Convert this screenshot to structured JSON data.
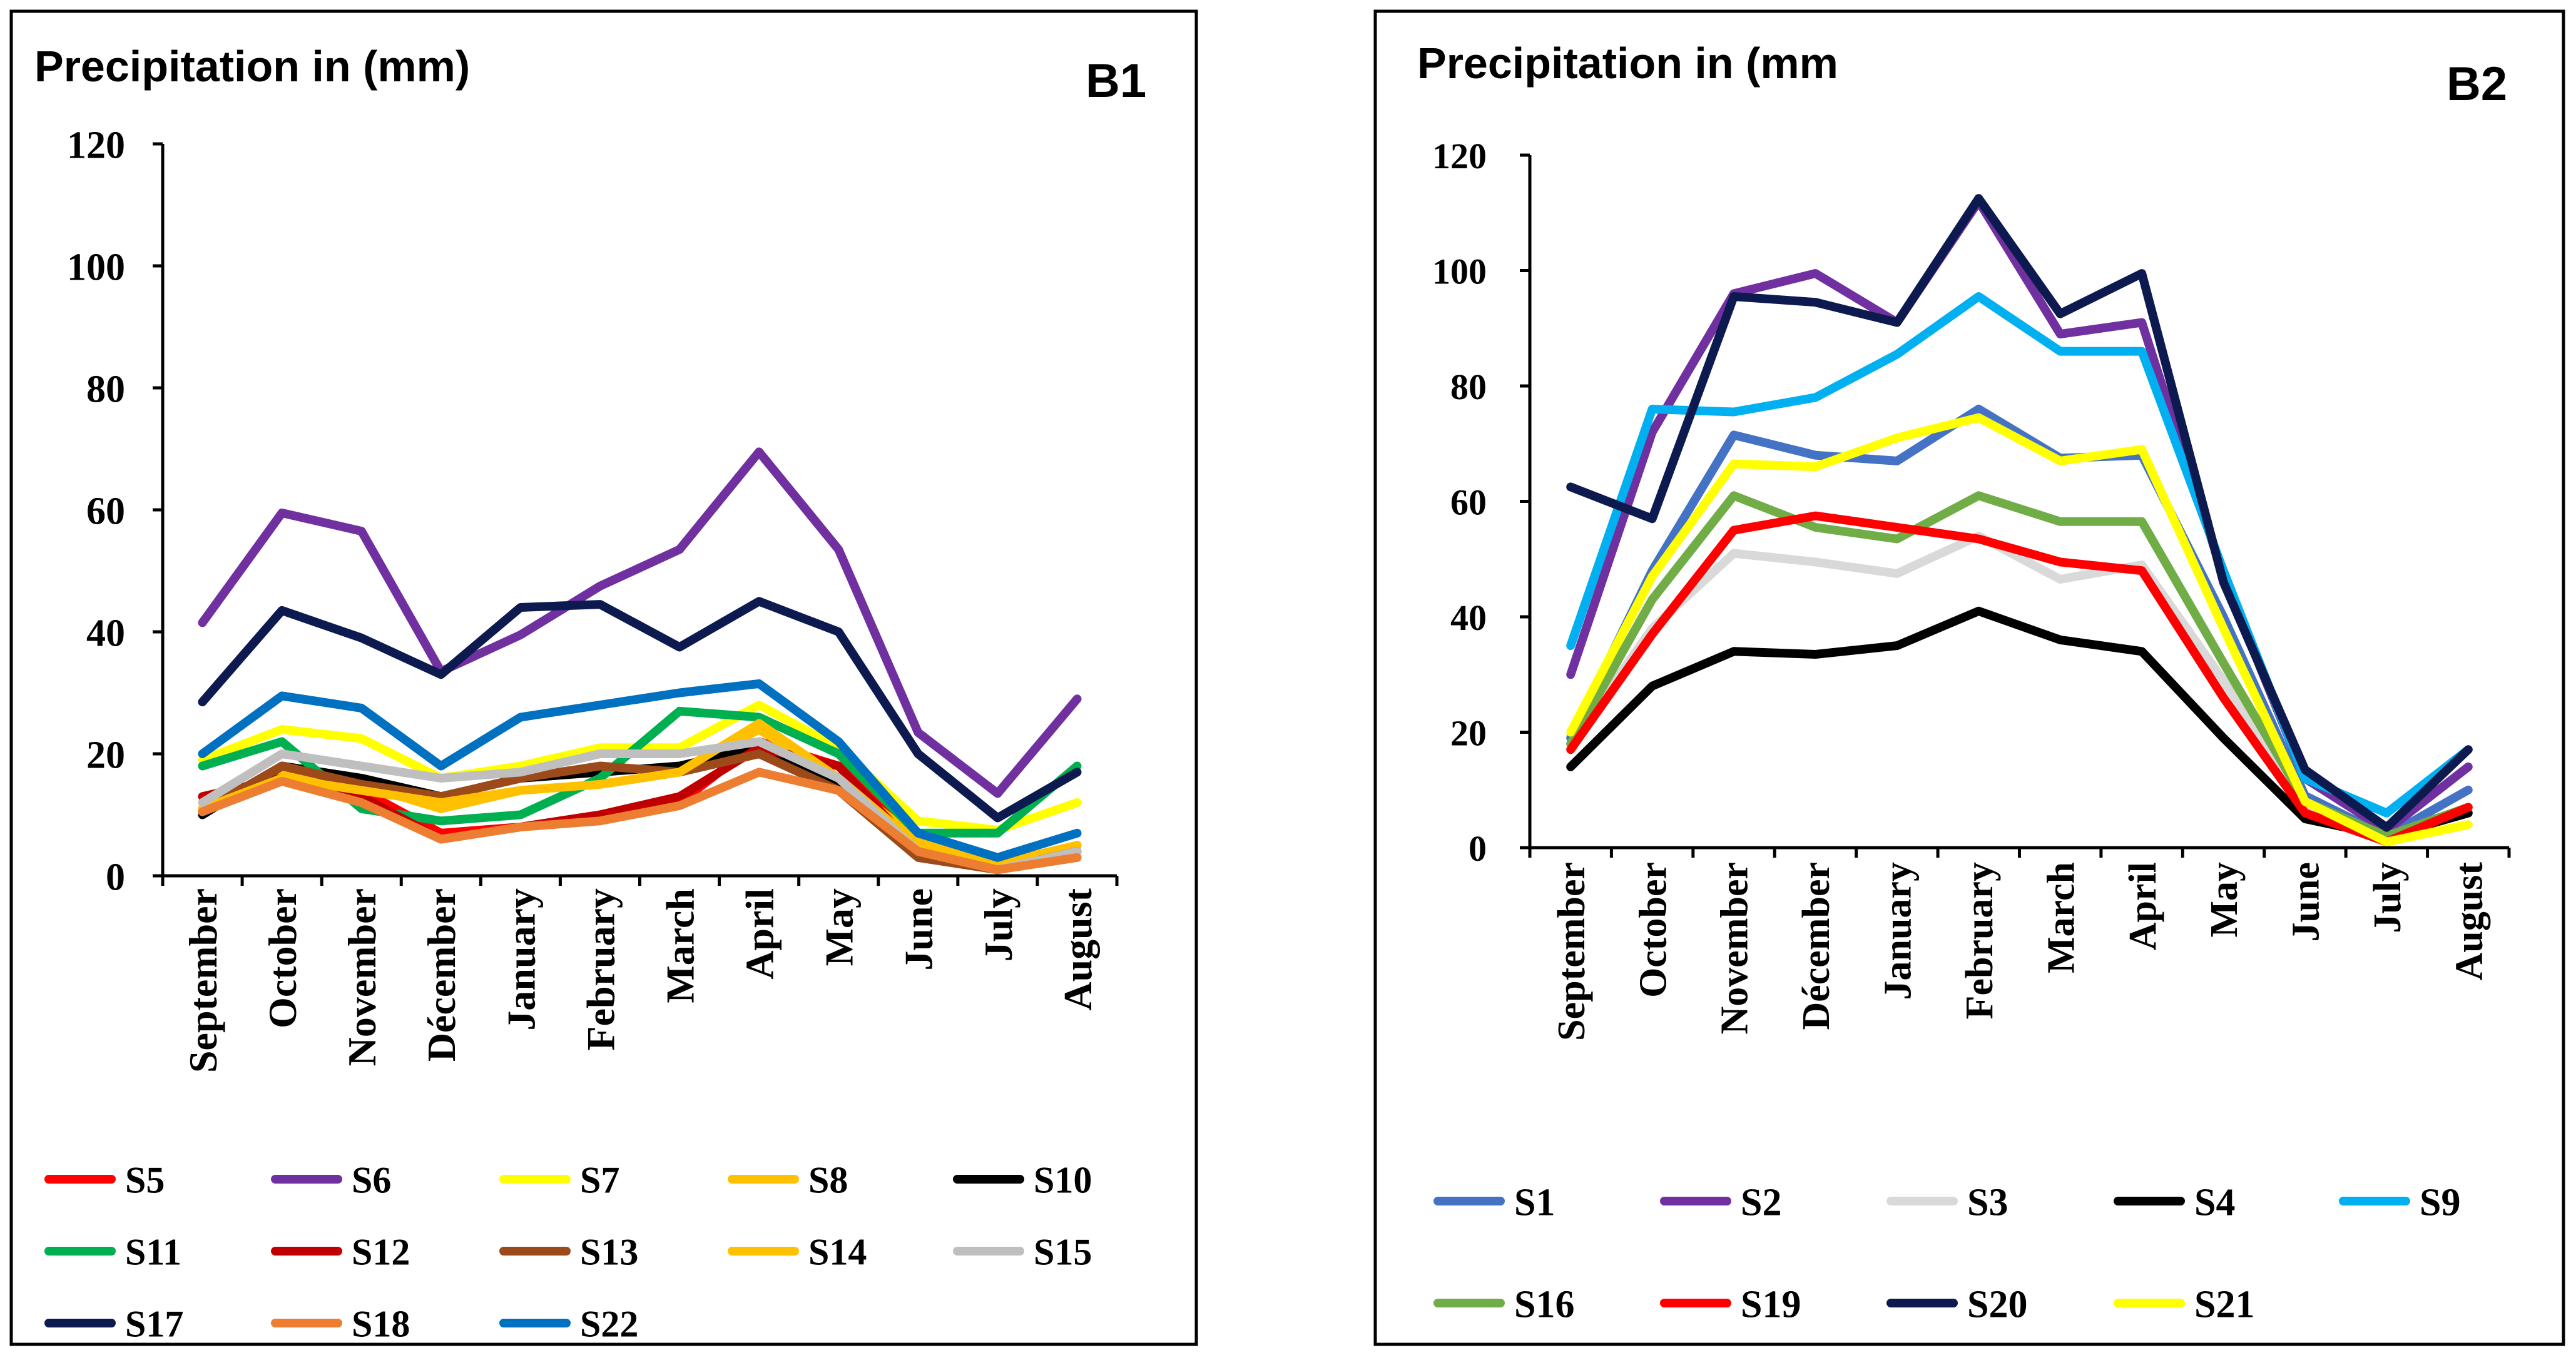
{
  "chart_data": [
    {
      "type": "line",
      "title": "Precipitation in (mm)",
      "panel_label": "B1",
      "xlabel": "",
      "ylabel": "",
      "ylim": [
        0,
        120
      ],
      "yticks": [
        0,
        20,
        40,
        60,
        80,
        100,
        120
      ],
      "grid": false,
      "legend_position": "bottom",
      "categories": [
        "September",
        "October",
        "November",
        "Décember",
        "January",
        "February",
        "March",
        "April",
        "May",
        "June",
        "July",
        "August"
      ],
      "series": [
        {
          "name": "S5",
          "color": "#ff0000",
          "values": [
            11,
            17,
            14,
            7,
            8,
            10,
            12,
            22,
            18,
            5,
            1,
            5
          ]
        },
        {
          "name": "S6",
          "color": "#7030a0",
          "values": [
            41.5,
            59.5,
            56.5,
            33.5,
            39.5,
            47.5,
            53.5,
            69.5,
            53.5,
            23.5,
            13.5,
            29
          ]
        },
        {
          "name": "S7",
          "color": "#ffff00",
          "values": [
            19,
            24,
            22.5,
            16,
            18,
            21,
            21,
            28,
            21,
            9,
            7.5,
            12
          ]
        },
        {
          "name": "S8",
          "color": "#ffc000",
          "values": [
            10.5,
            17,
            15,
            11,
            14,
            15,
            17,
            24,
            16,
            6,
            2,
            5
          ]
        },
        {
          "name": "S10",
          "color": "#000000",
          "values": [
            10,
            18,
            16,
            13,
            16,
            17,
            18,
            21,
            15,
            4,
            1,
            4
          ]
        },
        {
          "name": "S11",
          "color": "#00b050",
          "values": [
            18,
            22,
            11,
            9,
            10,
            16,
            27,
            26,
            20,
            7,
            7,
            18
          ]
        },
        {
          "name": "S12",
          "color": "#c00000",
          "values": [
            13,
            16,
            13,
            6,
            8,
            10,
            13,
            21,
            18,
            4,
            1,
            4
          ]
        },
        {
          "name": "S13",
          "color": "#9c4a1a",
          "values": [
            10.5,
            18,
            15,
            13,
            16,
            18,
            17,
            20,
            14,
            3,
            1,
            4
          ]
        },
        {
          "name": "S14",
          "color": "#ffc000",
          "values": [
            11,
            16,
            14,
            12,
            14,
            15,
            17,
            25,
            16,
            5,
            2,
            3
          ]
        },
        {
          "name": "S15",
          "color": "#bfbfbf",
          "values": [
            12,
            20,
            18,
            16,
            17,
            20,
            20,
            22,
            16,
            4,
            1,
            4
          ]
        },
        {
          "name": "S17",
          "color": "#0d1a4f",
          "values": [
            28.5,
            43.5,
            39,
            33,
            44,
            44.5,
            37.5,
            45,
            40,
            20,
            9.5,
            17
          ]
        },
        {
          "name": "S18",
          "color": "#ed7d31",
          "values": [
            10.5,
            15.5,
            12,
            6,
            8,
            9,
            11.5,
            17,
            14,
            4,
            1,
            3
          ]
        },
        {
          "name": "S22",
          "color": "#0070c0",
          "values": [
            20,
            29.5,
            27.5,
            18,
            26,
            28,
            30,
            31.5,
            22,
            7,
            3,
            7
          ]
        }
      ]
    },
    {
      "type": "line",
      "title": "Precipitation in (mm",
      "panel_label": "B2",
      "xlabel": "",
      "ylabel": "",
      "ylim": [
        0,
        120
      ],
      "yticks": [
        0,
        20,
        40,
        60,
        80,
        100,
        120
      ],
      "grid": false,
      "legend_position": "bottom",
      "categories": [
        "September",
        "October",
        "November",
        "Décember",
        "January",
        "February",
        "March",
        "April",
        "May",
        "June",
        "July",
        "August"
      ],
      "series": [
        {
          "name": "S1",
          "color": "#4472c4",
          "values": [
            19,
            48,
            71.5,
            68,
            67,
            76,
            67.5,
            68,
            40,
            9,
            2,
            10
          ]
        },
        {
          "name": "S2",
          "color": "#7030a0",
          "values": [
            30,
            72,
            96,
            99.5,
            91,
            112,
            89,
            91,
            47,
            12,
            3,
            14
          ]
        },
        {
          "name": "S3",
          "color": "#d9d9d9",
          "values": [
            18,
            38,
            51,
            49.5,
            47.5,
            54,
            46.5,
            49,
            29,
            7,
            2,
            6
          ]
        },
        {
          "name": "S4",
          "color": "#000000",
          "values": [
            14,
            28,
            34,
            33.5,
            35,
            41,
            36,
            34,
            19,
            5,
            2,
            6
          ]
        },
        {
          "name": "S9",
          "color": "#00b0f0",
          "values": [
            35,
            76,
            75.5,
            78,
            85.5,
            95.5,
            86,
            86,
            48,
            12,
            6,
            17
          ]
        },
        {
          "name": "S16",
          "color": "#70ad47",
          "values": [
            18,
            43,
            61,
            55.5,
            53.5,
            61,
            56.5,
            56.5,
            32,
            8,
            2,
            7
          ]
        },
        {
          "name": "S19",
          "color": "#ff0000",
          "values": [
            17,
            37,
            55,
            57.5,
            55.5,
            53.5,
            49.5,
            48,
            26,
            6,
            1,
            7
          ]
        },
        {
          "name": "S20",
          "color": "#0d1a4f",
          "values": [
            62.5,
            57,
            95.5,
            94.5,
            91,
            112.5,
            92.5,
            99.5,
            46,
            13.5,
            3.5,
            17
          ]
        },
        {
          "name": "S21",
          "color": "#ffff00",
          "values": [
            20,
            47,
            66.5,
            66,
            71,
            74.5,
            67,
            69,
            38,
            8,
            1,
            4
          ]
        }
      ]
    }
  ]
}
